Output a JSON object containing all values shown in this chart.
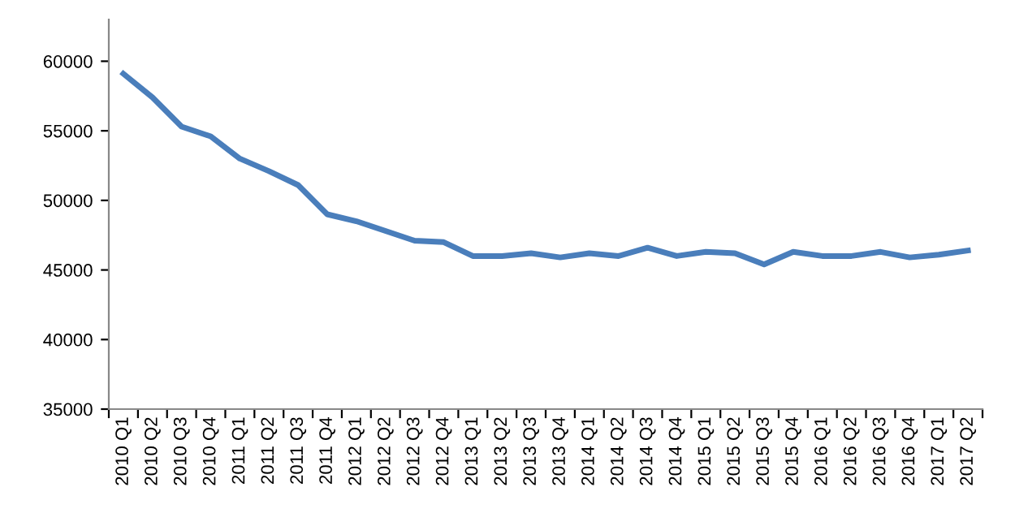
{
  "chart_data": {
    "type": "line",
    "categories": [
      "2010 Q1",
      "2010 Q2",
      "2010 Q3",
      "2010 Q4",
      "2011 Q1",
      "2011 Q2",
      "2011 Q3",
      "2011 Q4",
      "2012 Q1",
      "2012 Q2",
      "2012 Q3",
      "2012 Q4",
      "2013 Q1",
      "2013 Q2",
      "2013 Q3",
      "2013 Q4",
      "2014 Q1",
      "2014 Q2",
      "2014 Q3",
      "2014 Q4",
      "2015 Q1",
      "2015 Q2",
      "2015 Q3",
      "2015 Q4",
      "2016 Q1",
      "2016 Q2",
      "2016 Q3",
      "2016 Q4",
      "2017 Q1",
      "2017 Q2"
    ],
    "series": [
      {
        "color": "#4a7ebb",
        "values": [
          59100,
          57400,
          55300,
          54600,
          53000,
          52100,
          51100,
          49000,
          48500,
          47800,
          47100,
          47000,
          46000,
          46000,
          46200,
          45900,
          46200,
          46000,
          46600,
          46000,
          46300,
          46200,
          45400,
          46300,
          46000,
          46000,
          46300,
          45900,
          46100,
          46400
        ]
      }
    ],
    "ylim": [
      35000,
      63000
    ],
    "yticks": [
      35000,
      40000,
      45000,
      50000,
      55000,
      60000
    ],
    "grid": false,
    "marker": "none",
    "line_style": "solid"
  }
}
